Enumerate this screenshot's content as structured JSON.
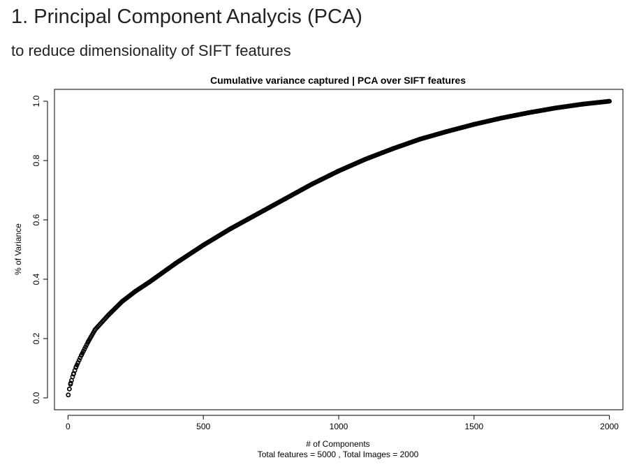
{
  "header": {
    "title": "1. Principal Component Analycis (PCA)",
    "subtitle": "to reduce dimensionality of SIFT features"
  },
  "chart_data": {
    "type": "scatter",
    "title": "Cumulative variance captured | PCA over SIFT features",
    "xlabel": "# of Components",
    "xlabel_sub": "Total features =  5000 , Total Images =  2000",
    "ylabel": "% of Variance",
    "xlim": [
      -50,
      2050
    ],
    "ylim": [
      -0.04,
      1.04
    ],
    "x_ticks": [
      0,
      500,
      1000,
      1500,
      2000
    ],
    "x_tick_labels": [
      "0",
      "500",
      "1000",
      "1500",
      "2000"
    ],
    "y_ticks": [
      0.0,
      0.2,
      0.4,
      0.6,
      0.8,
      1.0
    ],
    "y_tick_labels": [
      "0.0",
      "0.2",
      "0.4",
      "0.6",
      "0.8",
      "1.0"
    ],
    "grid": false,
    "legend": "none",
    "marker": "open-circle",
    "color": "#000000",
    "series": [
      {
        "x": [
          1,
          5,
          10,
          20,
          30,
          50,
          75,
          100,
          150,
          200,
          250,
          300,
          400,
          500,
          600,
          700,
          800,
          900,
          1000,
          1100,
          1200,
          1300,
          1400,
          1500,
          1600,
          1700,
          1800,
          1900,
          2000
        ],
        "values": [
          0.01,
          0.03,
          0.05,
          0.08,
          0.105,
          0.145,
          0.19,
          0.23,
          0.28,
          0.325,
          0.36,
          0.39,
          0.455,
          0.515,
          0.57,
          0.62,
          0.67,
          0.72,
          0.765,
          0.805,
          0.84,
          0.872,
          0.898,
          0.922,
          0.943,
          0.961,
          0.977,
          0.99,
          1.0
        ]
      }
    ]
  }
}
